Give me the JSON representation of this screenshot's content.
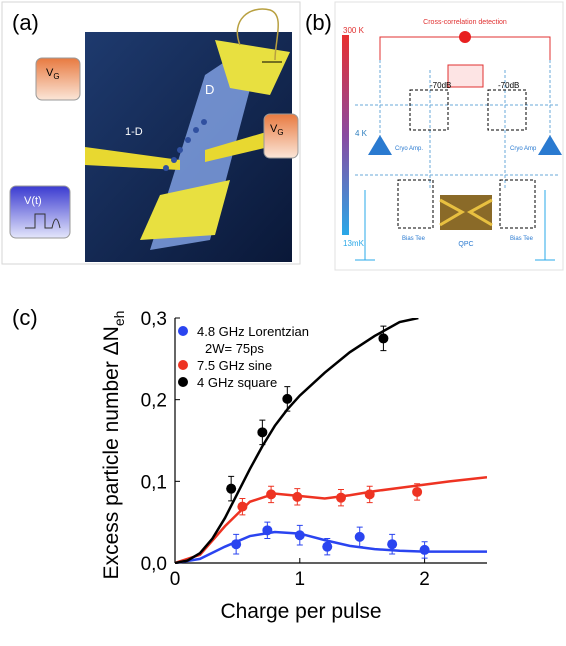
{
  "panels": {
    "a": {
      "label": "(a)",
      "gate_left": {
        "symbol": "V",
        "subscript": "G"
      },
      "gate_right": {
        "symbol": "V",
        "subscript": "G"
      },
      "source": "V(t)",
      "drain_label": "D",
      "channel_label": "1-D"
    },
    "b": {
      "label": "(b)",
      "title": "Cross-correlation detection",
      "temp_top": "300 K",
      "temp_mid": "4 K",
      "temp_bottom": "13mK",
      "attenuator_left": "-70dB",
      "attenuator_right": "-70dB",
      "amp_left": "Cryo Amp.",
      "amp_right": "Cryo Amp",
      "bias_tee_left": "Bias Tee",
      "bias_tee_right": "Bias Tee",
      "device": "QPC"
    },
    "c": {
      "label": "(c)"
    }
  },
  "chart_data": {
    "type": "scatter",
    "xlabel": "Charge per pulse",
    "ylabel": "Excess particle number ΔN",
    "ylabel_subscript": "eh",
    "xlim": [
      0,
      2.5
    ],
    "ylim": [
      0,
      0.3
    ],
    "xticks": [
      0,
      1,
      2
    ],
    "yticks": [
      {
        "value": 0,
        "label": "0,0"
      },
      {
        "value": 0.1,
        "label": "0,1"
      },
      {
        "value": 0.2,
        "label": "0,2"
      },
      {
        "value": 0.3,
        "label": "0,3"
      }
    ],
    "grid": false,
    "legend": "upper-left",
    "series": [
      {
        "name": "4.8 GHz Lorentzian",
        "name_detail": "2W= 75ps",
        "color": "#2a44f0",
        "x": [
          0.49,
          0.74,
          1.0,
          1.22,
          1.48,
          1.74,
          2.0
        ],
        "values": [
          0.023,
          0.04,
          0.034,
          0.02,
          0.032,
          0.023,
          0.016
        ],
        "errors": [
          0.012,
          0.01,
          0.012,
          0.01,
          0.012,
          0.012,
          0.01
        ],
        "fit": {
          "x": [
            0,
            0.2,
            0.4,
            0.6,
            0.8,
            1.0,
            1.2,
            1.4,
            1.6,
            1.8,
            2.0,
            2.5
          ],
          "values": [
            0,
            0.005,
            0.02,
            0.033,
            0.038,
            0.036,
            0.028,
            0.021,
            0.017,
            0.015,
            0.014,
            0.014
          ]
        }
      },
      {
        "name": "7.5 GHz sine",
        "color": "#ee3322",
        "x": [
          0.54,
          0.77,
          0.98,
          1.33,
          1.56,
          1.94
        ],
        "values": [
          0.069,
          0.084,
          0.081,
          0.08,
          0.084,
          0.087
        ],
        "errors": [
          0.01,
          0.01,
          0.01,
          0.01,
          0.01,
          0.01
        ],
        "fit": {
          "x": [
            0,
            0.2,
            0.4,
            0.6,
            0.8,
            1.0,
            1.2,
            1.4,
            1.6,
            1.8,
            2.0,
            2.2,
            2.5
          ],
          "values": [
            0,
            0.01,
            0.045,
            0.075,
            0.085,
            0.082,
            0.079,
            0.083,
            0.088,
            0.092,
            0.096,
            0.1,
            0.105
          ]
        }
      },
      {
        "name": "4 GHz square",
        "color": "#000000",
        "x": [
          0.45,
          0.7,
          0.9,
          1.67
        ],
        "values": [
          0.091,
          0.16,
          0.201,
          0.275
        ],
        "errors": [
          0.015,
          0.015,
          0.015,
          0.015
        ],
        "fit": {
          "x": [
            0,
            0.1,
            0.2,
            0.3,
            0.4,
            0.5,
            0.6,
            0.7,
            0.8,
            0.9,
            1.0,
            1.2,
            1.4,
            1.6,
            1.8,
            1.95
          ],
          "values": [
            0,
            0.003,
            0.012,
            0.03,
            0.055,
            0.085,
            0.115,
            0.143,
            0.168,
            0.188,
            0.205,
            0.233,
            0.258,
            0.278,
            0.295,
            0.3
          ]
        }
      }
    ]
  }
}
